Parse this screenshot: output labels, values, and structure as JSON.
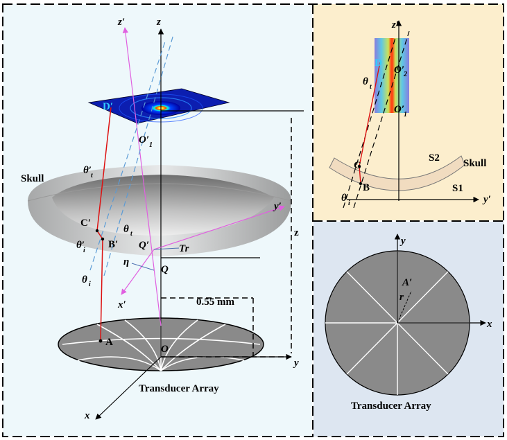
{
  "panels": {
    "main": {
      "title": "Transducer Array",
      "axes": {
        "z": "z",
        "y": "y",
        "x": "x",
        "z_prime": "z′",
        "y_prime": "y′",
        "x_prime": "x′"
      },
      "labels": {
        "skull": "Skull",
        "origin": "O",
        "point_A": "A",
        "point_B_prime": "B′",
        "point_C_prime": "C′",
        "point_D_prime": "D′",
        "point_O1_prime": "O′",
        "point_O1_sub": "1",
        "point_Q": "Q",
        "point_Q_prime": "Q′",
        "tr": "Tr",
        "eta": "η",
        "theta_t_1": "θ′",
        "theta_t_1_sub": "t",
        "theta_t_2": "θ",
        "theta_t_2_sub": "t",
        "theta_i_1": "θ′",
        "theta_i_1_sub": "i",
        "theta_i_2": "θ",
        "theta_i_2_sub": "i",
        "distance": "0.55 mm",
        "z_dim": "z"
      }
    },
    "top_right": {
      "axes": {
        "z_prime": "z′",
        "y_prime": "y′"
      },
      "labels": {
        "skull": "Skull",
        "s1": "S1",
        "s2": "S2",
        "point_B": "B",
        "point_C": "C",
        "point_D": "D",
        "point_O2": "O′",
        "point_O2_sub": "2",
        "point_O1": "O′",
        "point_O1_sub": "1",
        "theta_t": "θ",
        "theta_t_sub": "t",
        "theta_i": "θ",
        "theta_i_sub": "i"
      }
    },
    "bottom_right": {
      "title": "Transducer Array",
      "axes": {
        "y": "y",
        "x": "x"
      },
      "labels": {
        "point_A_prime": "A′",
        "r": "r"
      }
    }
  },
  "colors": {
    "main_bg": "#eef8fb",
    "top_right_bg": "#fceecd",
    "bottom_right_bg": "#dde6f1",
    "ray_red": "#dd1111",
    "axis_pink": "#e060e0",
    "dashed_blue": "#5b9bd5",
    "cyan_label": "#33ccff"
  },
  "icons": {
    "legend": "none"
  }
}
